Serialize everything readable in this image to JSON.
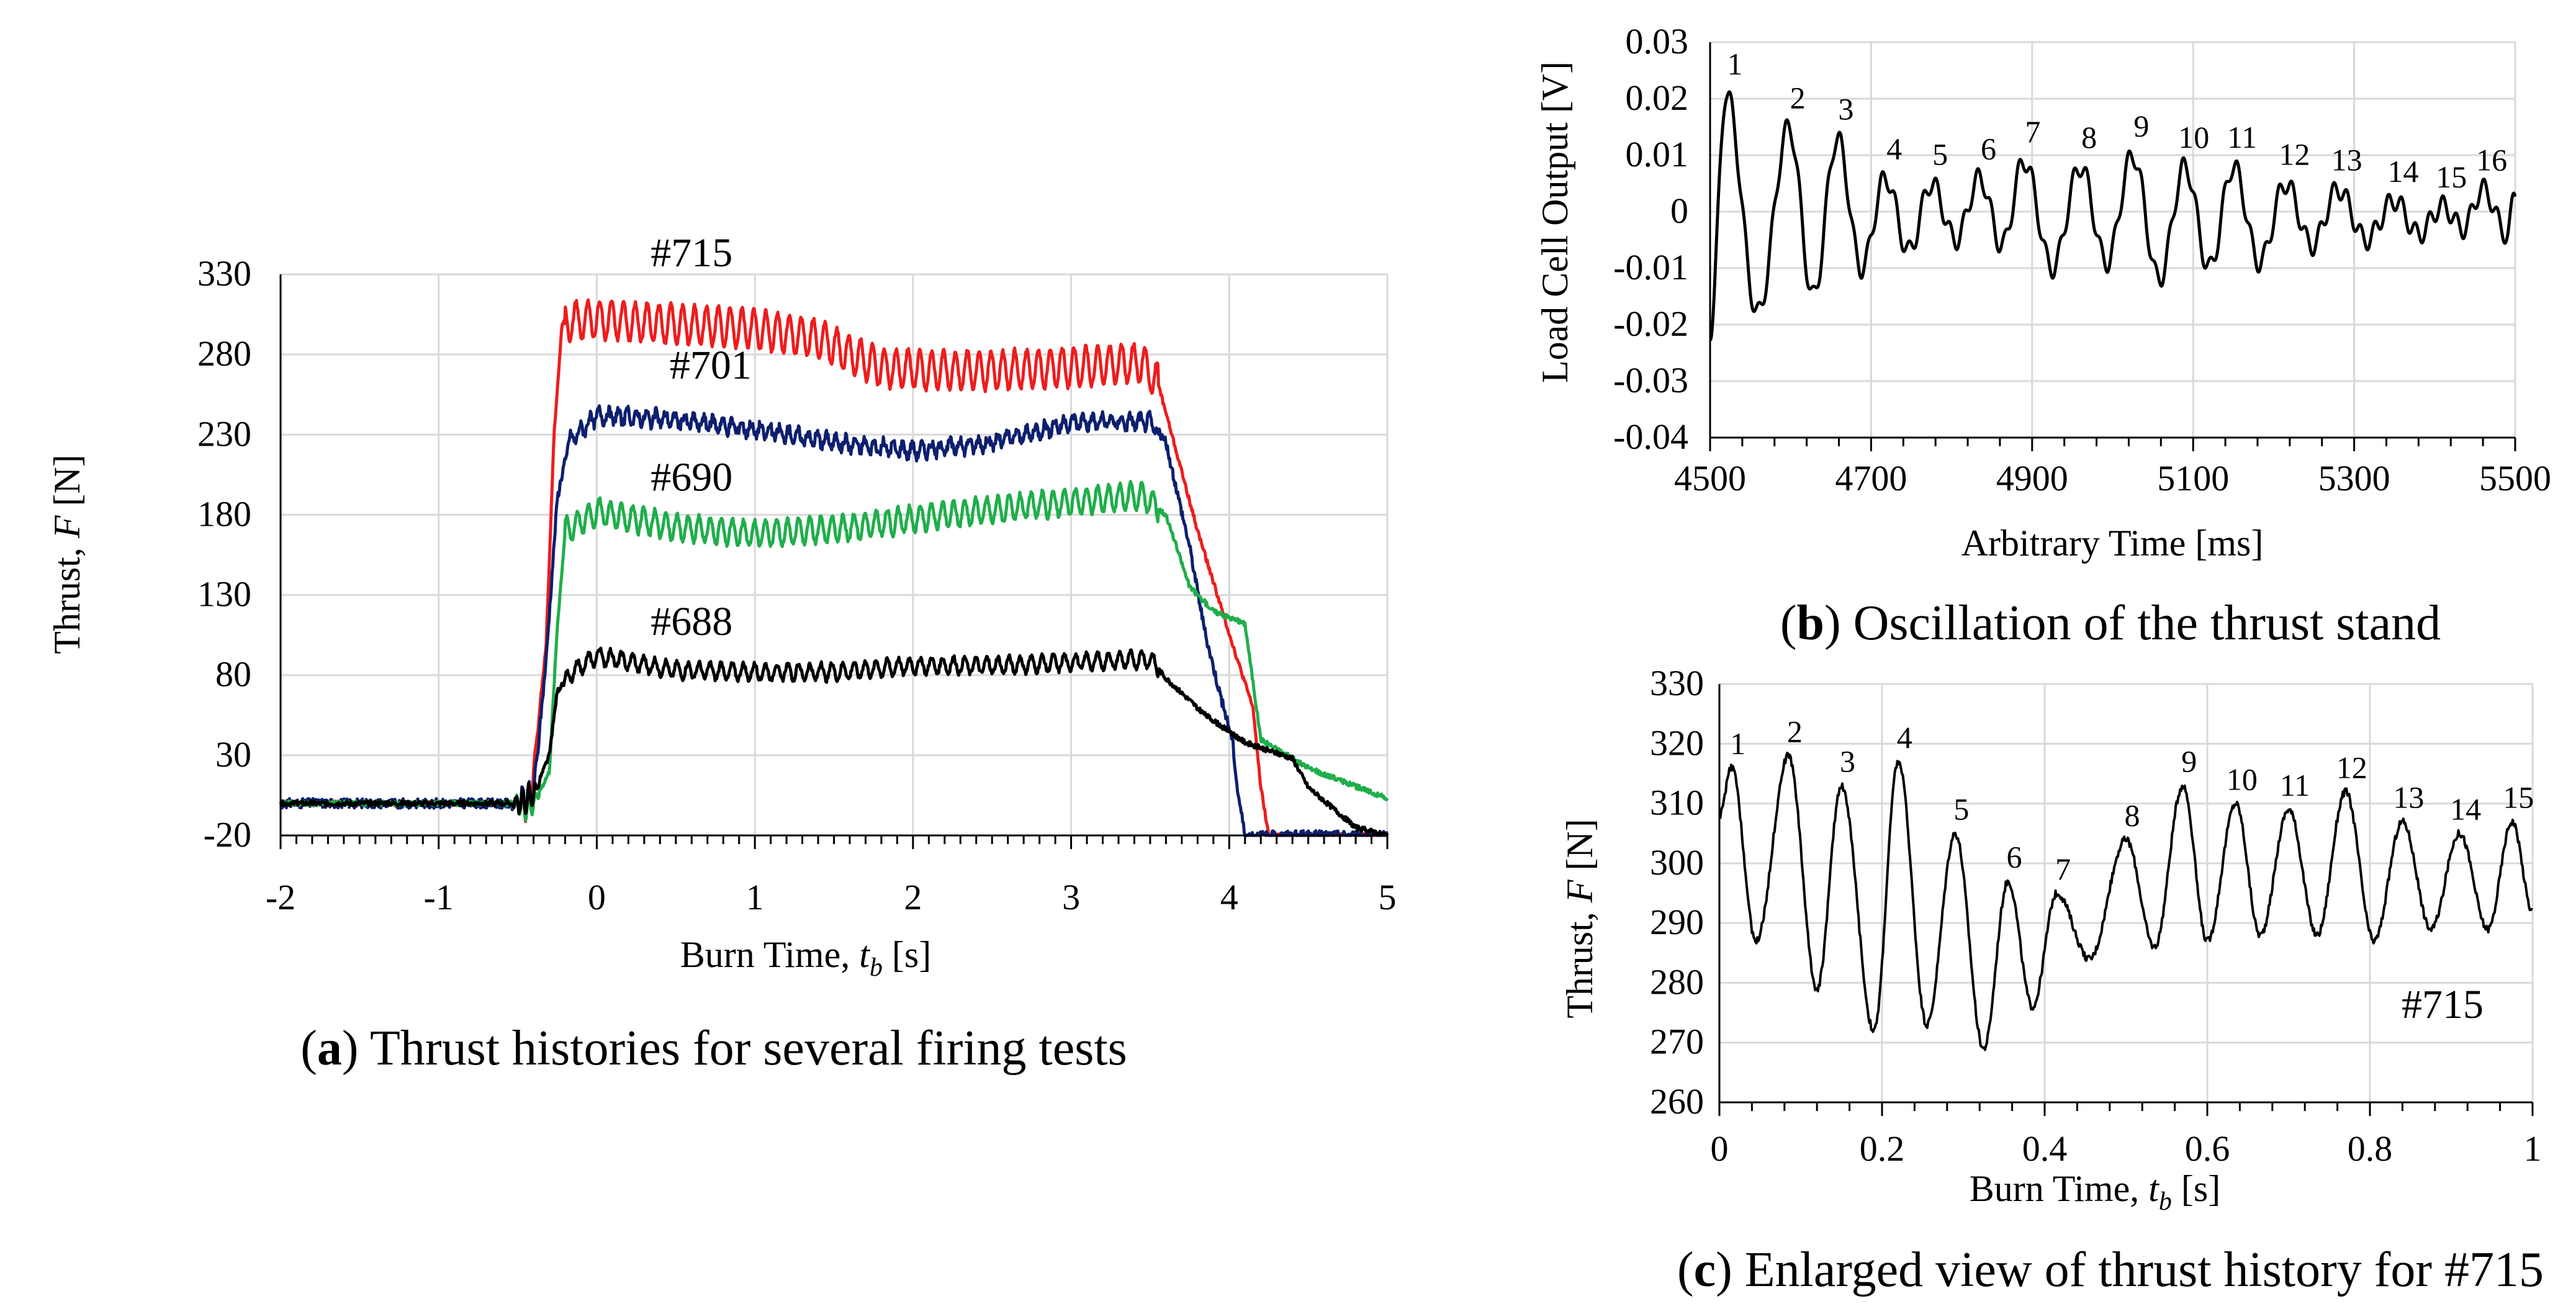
{
  "chart_data": [
    {
      "panel": "a",
      "type": "line",
      "caption_letter": "a",
      "caption_text": " Thrust histories for several firing tests",
      "ylabel": "Thrust, ",
      "ylabel_var": "F",
      "ylabel_unit": " [N]",
      "xlabel": "Burn Time, ",
      "xlabel_var": "t",
      "xlabel_sub": "b",
      "xlabel_unit": " [s]",
      "xlim": [
        -2,
        5
      ],
      "ylim": [
        -20,
        330
      ],
      "xticks": [
        "-2",
        "-1",
        "0",
        "1",
        "2",
        "3",
        "4",
        "5"
      ],
      "yticks": [
        "-20",
        "30",
        "80",
        "130",
        "180",
        "230",
        "280",
        "330"
      ],
      "series": [
        {
          "name": "#715",
          "color": "#ee1c1c",
          "ripple_amp": 12,
          "ripple_period": 0.075,
          "noise": 1.5,
          "points": [
            [
              -2,
              0
            ],
            [
              -0.5,
              0
            ],
            [
              -0.42,
              0
            ],
            [
              -0.32,
              100
            ],
            [
              -0.27,
              230
            ],
            [
              -0.22,
              300
            ],
            [
              0,
              302
            ],
            [
              0.3,
              300
            ],
            [
              0.7,
              298
            ],
            [
              1.0,
              296
            ],
            [
              1.4,
              290
            ],
            [
              1.6,
              280
            ],
            [
              1.8,
              272
            ],
            [
              2.1,
              270
            ],
            [
              2.5,
              270
            ],
            [
              3.0,
              272
            ],
            [
              3.45,
              275
            ],
            [
              3.55,
              262
            ],
            [
              3.8,
              170
            ],
            [
              4.05,
              90
            ],
            [
              4.15,
              60
            ],
            [
              4.2,
              10
            ],
            [
              4.25,
              -20
            ],
            [
              5,
              -20
            ]
          ]
        },
        {
          "name": "#701",
          "color": "#0d1f6e",
          "ripple_amp": 4,
          "ripple_period": 0.06,
          "noise": 3,
          "points": [
            [
              -2,
              0
            ],
            [
              -0.5,
              0
            ],
            [
              -0.4,
              5
            ],
            [
              -0.32,
              90
            ],
            [
              -0.25,
              190
            ],
            [
              -0.18,
              225
            ],
            [
              0,
              242
            ],
            [
              0.4,
              240
            ],
            [
              0.8,
              236
            ],
            [
              1.2,
              230
            ],
            [
              1.6,
              224
            ],
            [
              2.0,
              220
            ],
            [
              2.5,
              225
            ],
            [
              3.0,
              238
            ],
            [
              3.5,
              238
            ],
            [
              3.6,
              225
            ],
            [
              3.75,
              160
            ],
            [
              3.85,
              105
            ],
            [
              3.95,
              65
            ],
            [
              4.02,
              40
            ],
            [
              4.05,
              10
            ],
            [
              4.1,
              -20
            ],
            [
              5,
              -20
            ]
          ]
        },
        {
          "name": "#690",
          "color": "#1fae4a",
          "ripple_amp": 8,
          "ripple_period": 0.07,
          "noise": 1.5,
          "points": [
            [
              -2,
              0
            ],
            [
              -0.5,
              0
            ],
            [
              -0.4,
              0
            ],
            [
              -0.3,
              20
            ],
            [
              -0.25,
              110
            ],
            [
              -0.2,
              170
            ],
            [
              0,
              182
            ],
            [
              0.5,
              172
            ],
            [
              1.0,
              168
            ],
            [
              1.6,
              172
            ],
            [
              2.2,
              180
            ],
            [
              3.0,
              188
            ],
            [
              3.45,
              192
            ],
            [
              3.6,
              180
            ],
            [
              3.75,
              135
            ],
            [
              3.9,
              120
            ],
            [
              4.1,
              112
            ],
            [
              4.2,
              40
            ],
            [
              4.5,
              22
            ],
            [
              5,
              3
            ]
          ]
        },
        {
          "name": "#688",
          "color": "#000000",
          "ripple_amp": 5,
          "ripple_period": 0.07,
          "noise": 1.5,
          "points": [
            [
              -2,
              0
            ],
            [
              -0.5,
              0
            ],
            [
              -0.4,
              5
            ],
            [
              -0.3,
              30
            ],
            [
              -0.25,
              70
            ],
            [
              -0.15,
              82
            ],
            [
              0,
              92
            ],
            [
              0.5,
              83
            ],
            [
              1.0,
              82
            ],
            [
              1.5,
              82
            ],
            [
              2.0,
              86
            ],
            [
              2.5,
              86
            ],
            [
              3.0,
              88
            ],
            [
              3.5,
              90
            ],
            [
              3.6,
              78
            ],
            [
              3.85,
              55
            ],
            [
              4.1,
              38
            ],
            [
              4.4,
              28
            ],
            [
              4.5,
              10
            ],
            [
              4.8,
              -15
            ],
            [
              5,
              -20
            ]
          ]
        }
      ],
      "annotations": [
        {
          "text": "#715",
          "x": 0.6,
          "y": 335
        },
        {
          "text": "#701",
          "x": 0.72,
          "y": 265
        },
        {
          "text": "#690",
          "x": 0.6,
          "y": 195
        },
        {
          "text": "#688",
          "x": 0.6,
          "y": 105
        }
      ]
    },
    {
      "panel": "b",
      "type": "line",
      "caption_letter": "b",
      "caption_text": " Oscillation of the thrust stand",
      "ylabel": "Load Cell Output [V]",
      "xlabel": "Arbitrary Time [ms]",
      "xlim": [
        4500,
        5500
      ],
      "ylim": [
        -0.04,
        0.03
      ],
      "xticks": [
        "4500",
        "4700",
        "4900",
        "5100",
        "5300",
        "5500"
      ],
      "yticks": [
        "-0.04",
        "-0.03",
        "-0.02",
        "-0.01",
        "0",
        "0.01",
        "0.02",
        "0.03"
      ],
      "series": [
        {
          "name": "load cell",
          "color": "#000000",
          "base": -0.001,
          "period": 62,
          "wiggle": 0.003,
          "peaks_x": [
            4520,
            4598,
            4658,
            4718,
            4775,
            4835,
            4890,
            4960,
            5025,
            5090,
            5150,
            5215,
            5280,
            5350,
            5410,
            5460
          ],
          "peaks_y": [
            0.021,
            0.015,
            0.013,
            0.006,
            0.005,
            0.006,
            0.009,
            0.008,
            0.01,
            0.008,
            0.008,
            0.005,
            0.004,
            0.002,
            0.001,
            0.004
          ],
          "troughs_y": [
            -0.018,
            -0.015,
            -0.01,
            -0.007,
            -0.005,
            -0.006,
            -0.01,
            -0.009,
            -0.012,
            -0.01,
            -0.009,
            -0.006,
            -0.005,
            -0.004,
            -0.003,
            -0.004
          ]
        }
      ],
      "peak_labels": [
        "1",
        "2",
        "3",
        "4",
        "5",
        "6",
        "7",
        "8",
        "9",
        "10",
        "11",
        "12",
        "13",
        "14",
        "15",
        "16"
      ]
    },
    {
      "panel": "c",
      "type": "line",
      "caption_letter": "c",
      "caption_text": " Enlarged view of thrust history for #715",
      "ylabel": "Thrust, ",
      "ylabel_var": "F",
      "ylabel_unit": " [N]",
      "xlabel": "Burn Time, ",
      "xlabel_var": "t",
      "xlabel_sub": "b",
      "xlabel_unit": " [s]",
      "xlim": [
        0,
        1
      ],
      "ylim": [
        260,
        330
      ],
      "xticks": [
        "0",
        "0.2",
        "0.4",
        "0.6",
        "0.8",
        "1"
      ],
      "yticks": [
        "260",
        "270",
        "280",
        "290",
        "300",
        "310",
        "320",
        "330"
      ],
      "inset_label": "#715",
      "series": [
        {
          "name": "#715",
          "color": "#000000",
          "peaks_x": [
            0.015,
            0.085,
            0.15,
            0.22,
            0.29,
            0.355,
            0.415,
            0.5,
            0.57,
            0.635,
            0.7,
            0.77,
            0.84,
            0.91,
            0.975
          ],
          "peaks_y": [
            316,
            318,
            313,
            317,
            305,
            297,
            295,
            304,
            313,
            310,
            309,
            312,
            307,
            305,
            307
          ],
          "troughs_x": [
            0.045,
            0.12,
            0.19,
            0.255,
            0.325,
            0.385,
            0.455,
            0.535,
            0.6,
            0.665,
            0.735,
            0.805,
            0.875,
            0.945
          ],
          "troughs_y": [
            287,
            279,
            272,
            273,
            269,
            276,
            284,
            286,
            287,
            288,
            288,
            287,
            289,
            289
          ]
        }
      ],
      "peak_labels": [
        "1",
        "2",
        "3",
        "4",
        "5",
        "6",
        "7",
        "8",
        "9",
        "10",
        "11",
        "12",
        "13",
        "14",
        "15"
      ]
    }
  ]
}
